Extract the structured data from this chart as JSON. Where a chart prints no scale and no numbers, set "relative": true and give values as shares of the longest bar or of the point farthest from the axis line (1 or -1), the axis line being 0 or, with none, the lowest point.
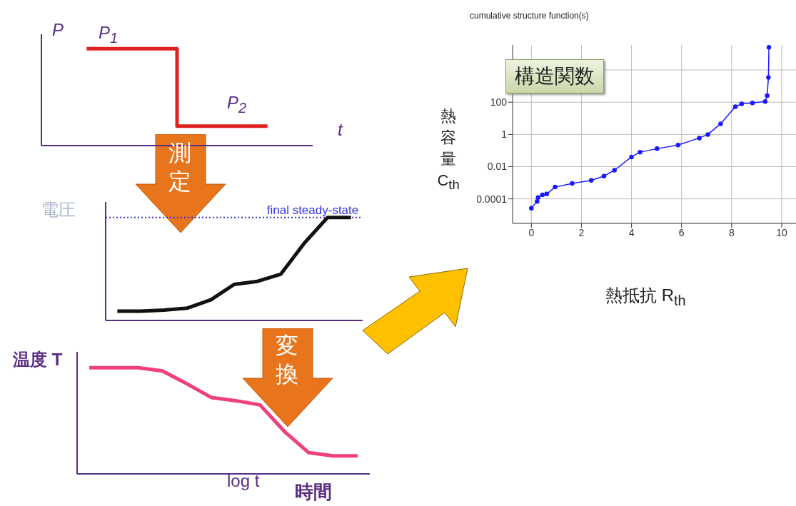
{
  "chart_data": [
    {
      "type": "step",
      "relative": true,
      "ylabel": "P",
      "xlabel": "t",
      "categories": [
        null,
        null,
        null
      ],
      "values": [
        1,
        0.2,
        0.2
      ],
      "color": "#e02020",
      "annotations": [
        "P$_{1}$",
        "P$_{2}$",
        "測定"
      ]
    },
    {
      "type": "line",
      "relative": true,
      "ylabel": "電圧",
      "categories": [
        null,
        null,
        null,
        null,
        null,
        null,
        null,
        null,
        null,
        null,
        null
      ],
      "values": [
        0.09,
        0.09,
        0.1,
        0.12,
        0.2,
        0.35,
        0.38,
        0.45,
        0.75,
        1,
        1
      ],
      "color": "#111111",
      "ref_lines": [
        {
          "axis": "y",
          "value": 1,
          "label": "final steady-state",
          "color": "#3333dd",
          "line_style": "dotted"
        }
      ],
      "annotations": [
        "変換"
      ]
    },
    {
      "type": "line",
      "relative": true,
      "ylabel": "温度 T",
      "xlabel": "log t",
      "categories": [
        null,
        null,
        null,
        null,
        null,
        null,
        null,
        null,
        null,
        null,
        null,
        null
      ],
      "values": [
        1,
        1,
        1,
        0.97,
        0.85,
        0.72,
        0.69,
        0.65,
        0.4,
        0.2,
        0.17,
        0.17
      ],
      "color": "#f0407a",
      "annotations": [
        "時間"
      ]
    },
    {
      "type": "line",
      "title": "cumulative structure function(s)",
      "xlabel": "熱抵抗 R$_{th}$",
      "ylabel": "熱容量 C$_{th}$",
      "log": "y",
      "grid": true,
      "marker": "circle",
      "color": "#1a1aff",
      "x": [
        0,
        0.23,
        0.27,
        0.44,
        0.61,
        0.95,
        1.63,
        2.39,
        2.9,
        3.32,
        4.0,
        4.34,
        5.02,
        5.86,
        6.71,
        7.05,
        7.56,
        8.15,
        8.4,
        8.83,
        9.34,
        9.42,
        9.47,
        9.49
      ],
      "values": [
        2.6e-05,
        7e-05,
        0.00012,
        0.00018,
        0.0002,
        0.00054,
        0.0009,
        0.0014,
        0.0026,
        0.006,
        0.04,
        0.08,
        0.13,
        0.22,
        0.6,
        1,
        4.6,
        53,
        80,
        90,
        110,
        260,
        3500,
        260000
      ],
      "xlim": [
        -0.75,
        10.6
      ],
      "xticks": [
        0,
        2,
        4,
        6,
        8,
        10
      ],
      "ylim": [
        3e-06,
        360000.0
      ],
      "yticks": [
        0.0001,
        0.01,
        1,
        100,
        {
          "value": 10000,
          "label": null
        }
      ],
      "annotations": [
        "構造関数"
      ]
    }
  ]
}
